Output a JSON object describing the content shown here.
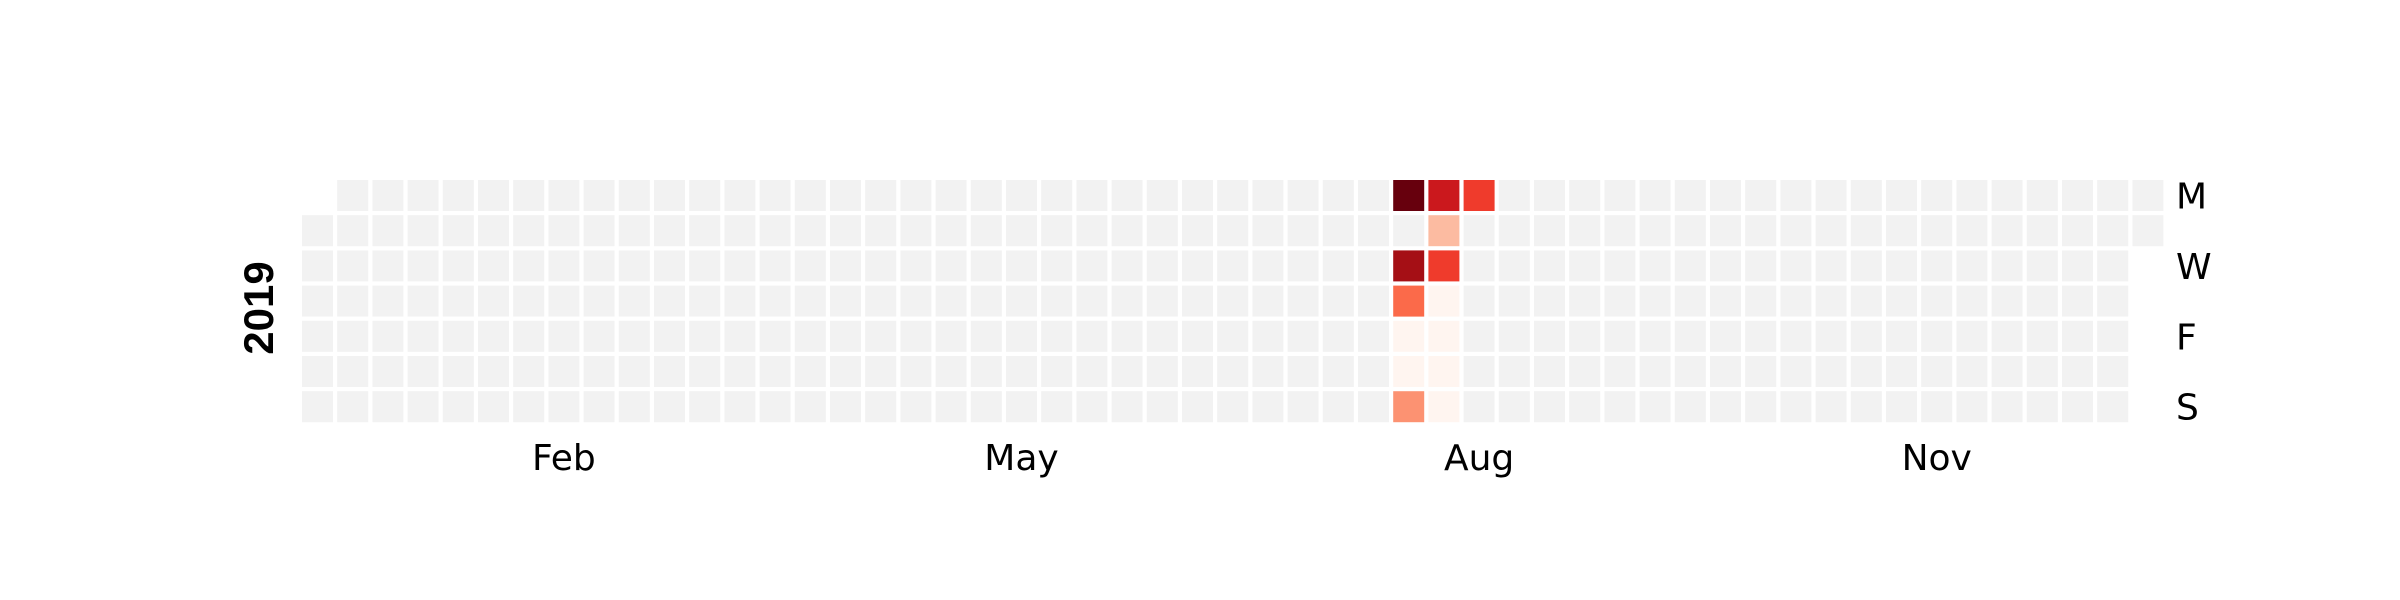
{
  "chart_data": {
    "type": "heatmap",
    "title": "",
    "year_label": "2019",
    "year": 2019,
    "month_labels": [
      {
        "label": "Feb",
        "week": 7
      },
      {
        "label": "May",
        "week": 20
      },
      {
        "label": "Aug",
        "week": 33
      },
      {
        "label": "Nov",
        "week": 46
      }
    ],
    "day_labels": [
      {
        "label": "M",
        "row": 0
      },
      {
        "label": "W",
        "row": 2
      },
      {
        "label": "F",
        "row": 4
      },
      {
        "label": "S",
        "row": 6
      }
    ],
    "colors": {
      "empty": "#f2f2f2",
      "scale": [
        "#fff5f0",
        "#fee0d2",
        "#fcbba1",
        "#fc9272",
        "#fb6a4a",
        "#ef3b2c",
        "#cb181d",
        "#a50f15",
        "#67000d"
      ]
    },
    "vmax": 8,
    "values": [
      {
        "date": "2019-08-05",
        "value": 8
      },
      {
        "date": "2019-08-07",
        "value": 6.6
      },
      {
        "date": "2019-08-08",
        "value": 3.5
      },
      {
        "date": "2019-08-09",
        "value": 0.3
      },
      {
        "date": "2019-08-10",
        "value": 0.3
      },
      {
        "date": "2019-08-11",
        "value": 3.3
      },
      {
        "date": "2019-08-12",
        "value": 6.2
      },
      {
        "date": "2019-08-13",
        "value": 2.3
      },
      {
        "date": "2019-08-14",
        "value": 5.2
      },
      {
        "date": "2019-08-15",
        "value": 0.4
      },
      {
        "date": "2019-08-16",
        "value": 0.4
      },
      {
        "date": "2019-08-17",
        "value": 0.4
      },
      {
        "date": "2019-08-18",
        "value": 0.4
      },
      {
        "date": "2019-08-19",
        "value": 5.0
      }
    ]
  }
}
